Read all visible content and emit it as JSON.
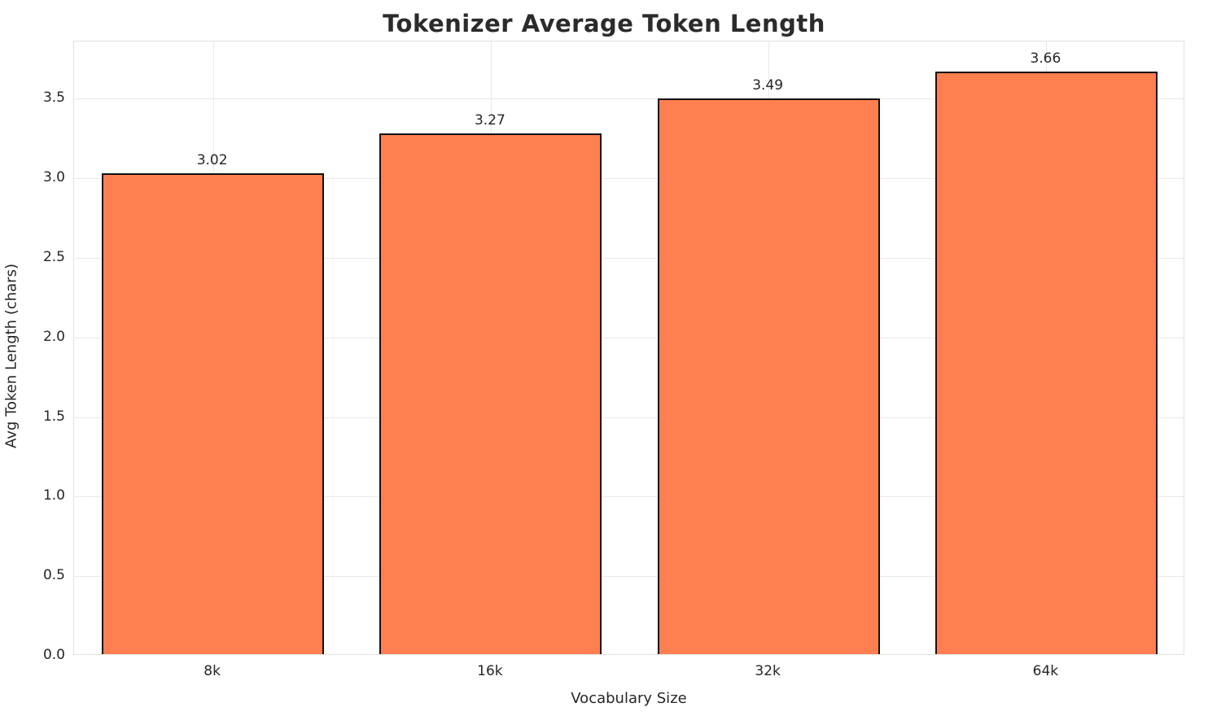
{
  "chart_data": {
    "type": "bar",
    "title": "Tokenizer Average Token Length",
    "xlabel": "Vocabulary Size",
    "ylabel": "Avg Token Length (chars)",
    "categories": [
      "8k",
      "16k",
      "32k",
      "64k"
    ],
    "values": [
      3.02,
      3.27,
      3.49,
      3.66
    ],
    "value_labels": [
      "3.02",
      "3.27",
      "3.49",
      "3.66"
    ],
    "y_ticks": [
      0.0,
      0.5,
      1.0,
      1.5,
      2.0,
      2.5,
      3.0,
      3.5
    ],
    "ylim": [
      0,
      3.86
    ],
    "grid": true,
    "legend": "none",
    "bar_color": "#FF7F50",
    "bar_edge_color": "#111111",
    "grid_color": "#e8e8e8",
    "text_color": "#262626",
    "title_color": "#2b2b2b"
  }
}
